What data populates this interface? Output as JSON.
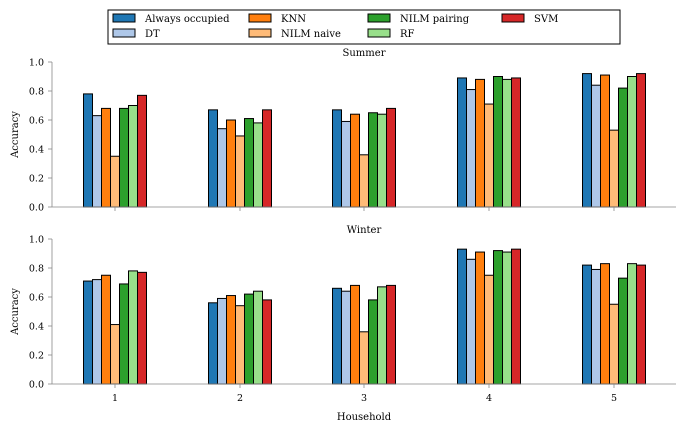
{
  "chart_data": {
    "type": "bar",
    "legend": {
      "placement": "top",
      "entries": [
        {
          "name": "Always occupied",
          "color": "#1f77b4"
        },
        {
          "name": "DT",
          "color": "#aec7e8"
        },
        {
          "name": "KNN",
          "color": "#ff7f0e"
        },
        {
          "name": "NILM naive",
          "color": "#ffbb78"
        },
        {
          "name": "NILM pairing",
          "color": "#2ca02c"
        },
        {
          "name": "RF",
          "color": "#98df8a"
        },
        {
          "name": "SVM",
          "color": "#d62728"
        }
      ]
    },
    "xlabel": "Household",
    "categories": [
      "1",
      "2",
      "3",
      "4",
      "5"
    ],
    "panels": [
      {
        "title": "Summer",
        "ylabel": "Accuracy",
        "ylim": [
          0,
          1.0
        ],
        "yticks": [
          "0.0",
          "0.2",
          "0.4",
          "0.6",
          "0.8",
          "1.0"
        ],
        "series": [
          {
            "name": "Always occupied",
            "values": [
              0.78,
              0.67,
              0.67,
              0.89,
              0.92
            ]
          },
          {
            "name": "DT",
            "values": [
              0.63,
              0.54,
              0.59,
              0.81,
              0.84
            ]
          },
          {
            "name": "KNN",
            "values": [
              0.68,
              0.6,
              0.64,
              0.88,
              0.91
            ]
          },
          {
            "name": "NILM naive",
            "values": [
              0.35,
              0.49,
              0.36,
              0.71,
              0.53
            ]
          },
          {
            "name": "NILM pairing",
            "values": [
              0.68,
              0.61,
              0.65,
              0.9,
              0.82
            ]
          },
          {
            "name": "RF",
            "values": [
              0.7,
              0.58,
              0.64,
              0.88,
              0.9
            ]
          },
          {
            "name": "SVM",
            "values": [
              0.77,
              0.67,
              0.68,
              0.89,
              0.92
            ]
          }
        ]
      },
      {
        "title": "Winter",
        "ylabel": "Accuracy",
        "ylim": [
          0,
          1.0
        ],
        "yticks": [
          "0.0",
          "0.2",
          "0.4",
          "0.6",
          "0.8",
          "1.0"
        ],
        "series": [
          {
            "name": "Always occupied",
            "values": [
              0.71,
              0.56,
              0.66,
              0.93,
              0.82
            ]
          },
          {
            "name": "DT",
            "values": [
              0.72,
              0.59,
              0.64,
              0.86,
              0.79
            ]
          },
          {
            "name": "KNN",
            "values": [
              0.75,
              0.61,
              0.68,
              0.91,
              0.83
            ]
          },
          {
            "name": "NILM naive",
            "values": [
              0.41,
              0.54,
              0.36,
              0.75,
              0.55
            ]
          },
          {
            "name": "NILM pairing",
            "values": [
              0.69,
              0.62,
              0.58,
              0.92,
              0.73
            ]
          },
          {
            "name": "RF",
            "values": [
              0.78,
              0.64,
              0.67,
              0.91,
              0.83
            ]
          },
          {
            "name": "SVM",
            "values": [
              0.77,
              0.58,
              0.68,
              0.93,
              0.82
            ]
          }
        ]
      }
    ]
  }
}
